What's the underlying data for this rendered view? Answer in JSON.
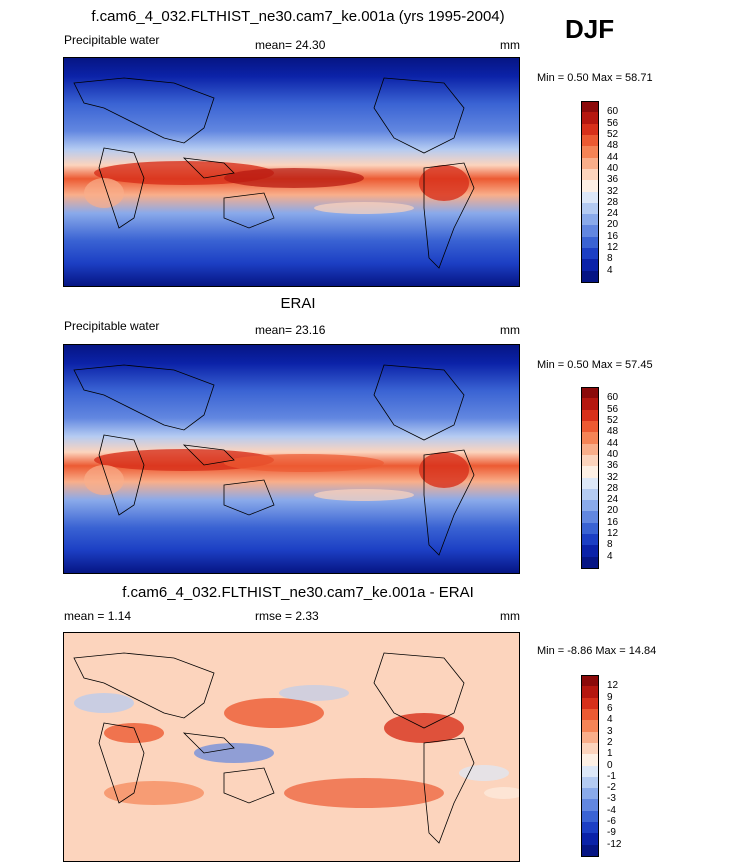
{
  "season": "DJF",
  "panels": [
    {
      "title": "f.cam6_4_032.FLTHIST_ne30.cam7_ke.001a (yrs 1995-2004)",
      "left_label": "Precipitable water",
      "center_label": "mean=  24.30",
      "units": "mm",
      "minmax": "Min =   0.50 Max =  58.71"
    },
    {
      "title": "ERAI",
      "left_label": "Precipitable water",
      "center_label": "mean=  23.16",
      "units": "mm",
      "minmax": "Min =   0.50 Max =  57.45"
    },
    {
      "title": "f.cam6_4_032.FLTHIST_ne30.cam7_ke.001a - ERAI",
      "left_label": "mean =   1.14",
      "center_label": "rmse =   2.33",
      "units": "mm",
      "minmax": "Min =  -8.86 Max =  14.84"
    }
  ],
  "colorbars": {
    "abs": {
      "labels": [
        "60",
        "56",
        "52",
        "48",
        "44",
        "40",
        "36",
        "32",
        "28",
        "24",
        "20",
        "16",
        "12",
        "8",
        "4"
      ],
      "colors": [
        "#8b0a0a",
        "#b5170f",
        "#d7301a",
        "#ec5a32",
        "#f58456",
        "#f9ae8a",
        "#fcd4bd",
        "#fdf0e5",
        "#dde8f8",
        "#b4cbf2",
        "#8aaaea",
        "#6287e0",
        "#3a63d3",
        "#1c3fc4",
        "#0b22a8",
        "#061584"
      ]
    },
    "diff": {
      "labels": [
        "12",
        "9",
        "6",
        "4",
        "3",
        "2",
        "1",
        "0",
        "-1",
        "-2",
        "-3",
        "-4",
        "-6",
        "-9",
        "-12"
      ],
      "colors": [
        "#8b0a0a",
        "#b5170f",
        "#d7301a",
        "#ec5a32",
        "#f58456",
        "#f9ae8a",
        "#fcd4bd",
        "#fdf0e5",
        "#dde8f8",
        "#b4cbf2",
        "#8aaaea",
        "#6287e0",
        "#3a63d3",
        "#1c3fc4",
        "#0b22a8",
        "#061584"
      ]
    }
  },
  "chart_data": [
    {
      "type": "heatmap",
      "title": "f.cam6_4_032.FLTHIST_ne30.cam7_ke.001a (yrs 1995-2004)",
      "variable": "Precipitable water",
      "units": "mm",
      "mean": 24.3,
      "min": 0.5,
      "max": 58.71,
      "contour_levels": [
        4,
        8,
        12,
        16,
        20,
        24,
        28,
        32,
        36,
        40,
        44,
        48,
        52,
        56,
        60
      ],
      "projection": "global lat-lon, centered on Pacific"
    },
    {
      "type": "heatmap",
      "title": "ERAI",
      "variable": "Precipitable water",
      "units": "mm",
      "mean": 23.16,
      "min": 0.5,
      "max": 57.45,
      "contour_levels": [
        4,
        8,
        12,
        16,
        20,
        24,
        28,
        32,
        36,
        40,
        44,
        48,
        52,
        56,
        60
      ],
      "projection": "global lat-lon, centered on Pacific"
    },
    {
      "type": "heatmap",
      "title": "f.cam6_4_032.FLTHIST_ne30.cam7_ke.001a - ERAI",
      "units": "mm",
      "mean": 1.14,
      "rmse": 2.33,
      "min": -8.86,
      "max": 14.84,
      "contour_levels": [
        -12,
        -9,
        -6,
        -4,
        -3,
        -2,
        -1,
        0,
        1,
        2,
        3,
        4,
        6,
        9,
        12
      ],
      "projection": "global lat-lon, centered on Pacific"
    }
  ]
}
